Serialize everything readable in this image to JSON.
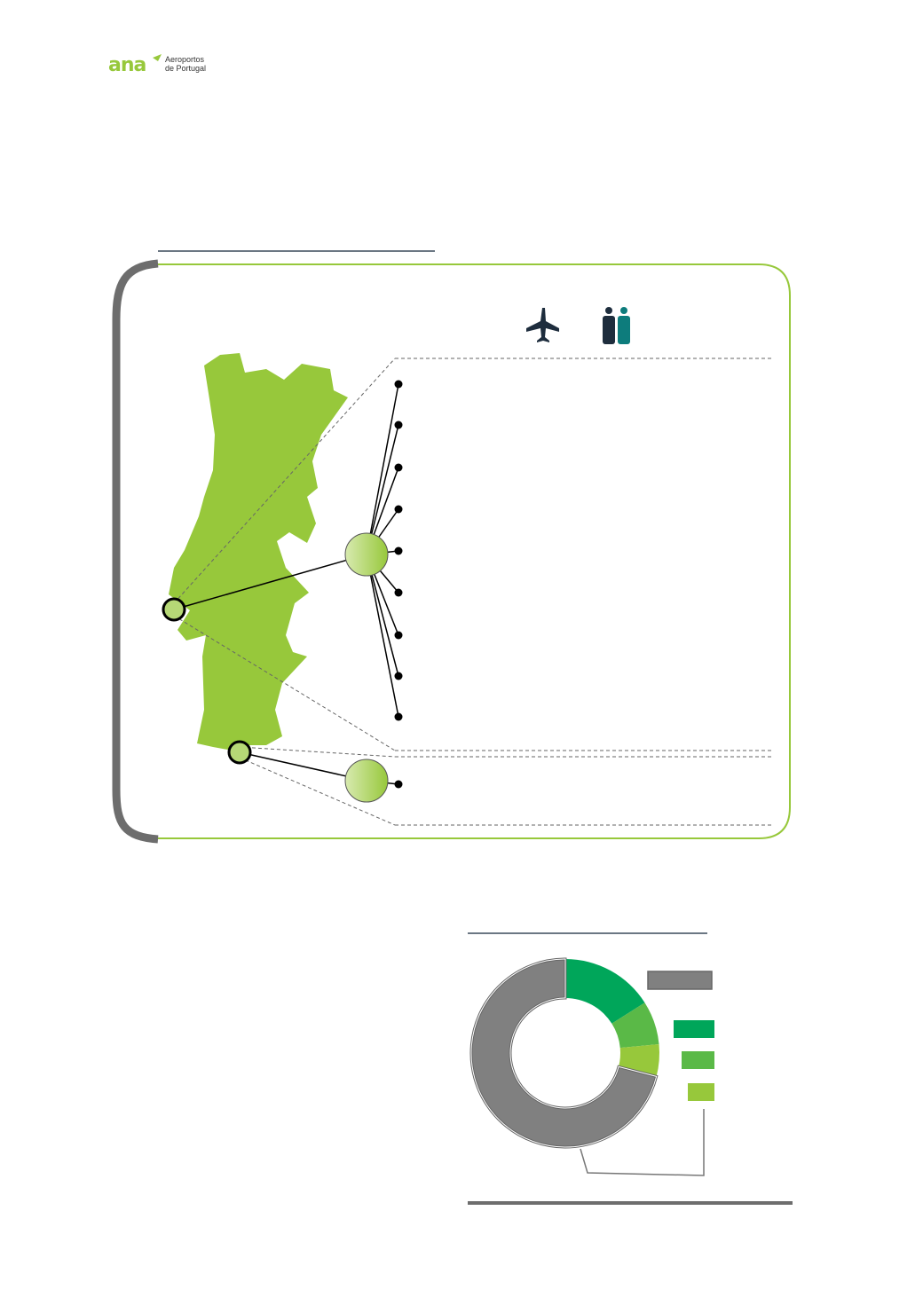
{
  "logo": {
    "mark": "ana",
    "line1": "Aeroportos",
    "line2": "de Portugal"
  },
  "colors": {
    "map_green": "#97c83b",
    "frame_gray": "#6d6d6d",
    "frame_green": "#97c83b",
    "dark_green": "#00a65a",
    "mid_green": "#5ab947",
    "light_green": "#97c83b",
    "slice_gray": "#808080",
    "icon_navy": "#1e2d3d",
    "icon_teal": "#0d7c7c"
  },
  "icons": {
    "plane": "plane-icon",
    "passengers": "people-icon"
  },
  "chart_data": {
    "type": "pie",
    "donut": true,
    "series": [
      {
        "values": [
          16,
          7.5,
          5.5,
          71
        ],
        "colors": [
          "#00a65a",
          "#5ab947",
          "#97c83b",
          "#808080"
        ]
      }
    ],
    "legend": "right"
  }
}
